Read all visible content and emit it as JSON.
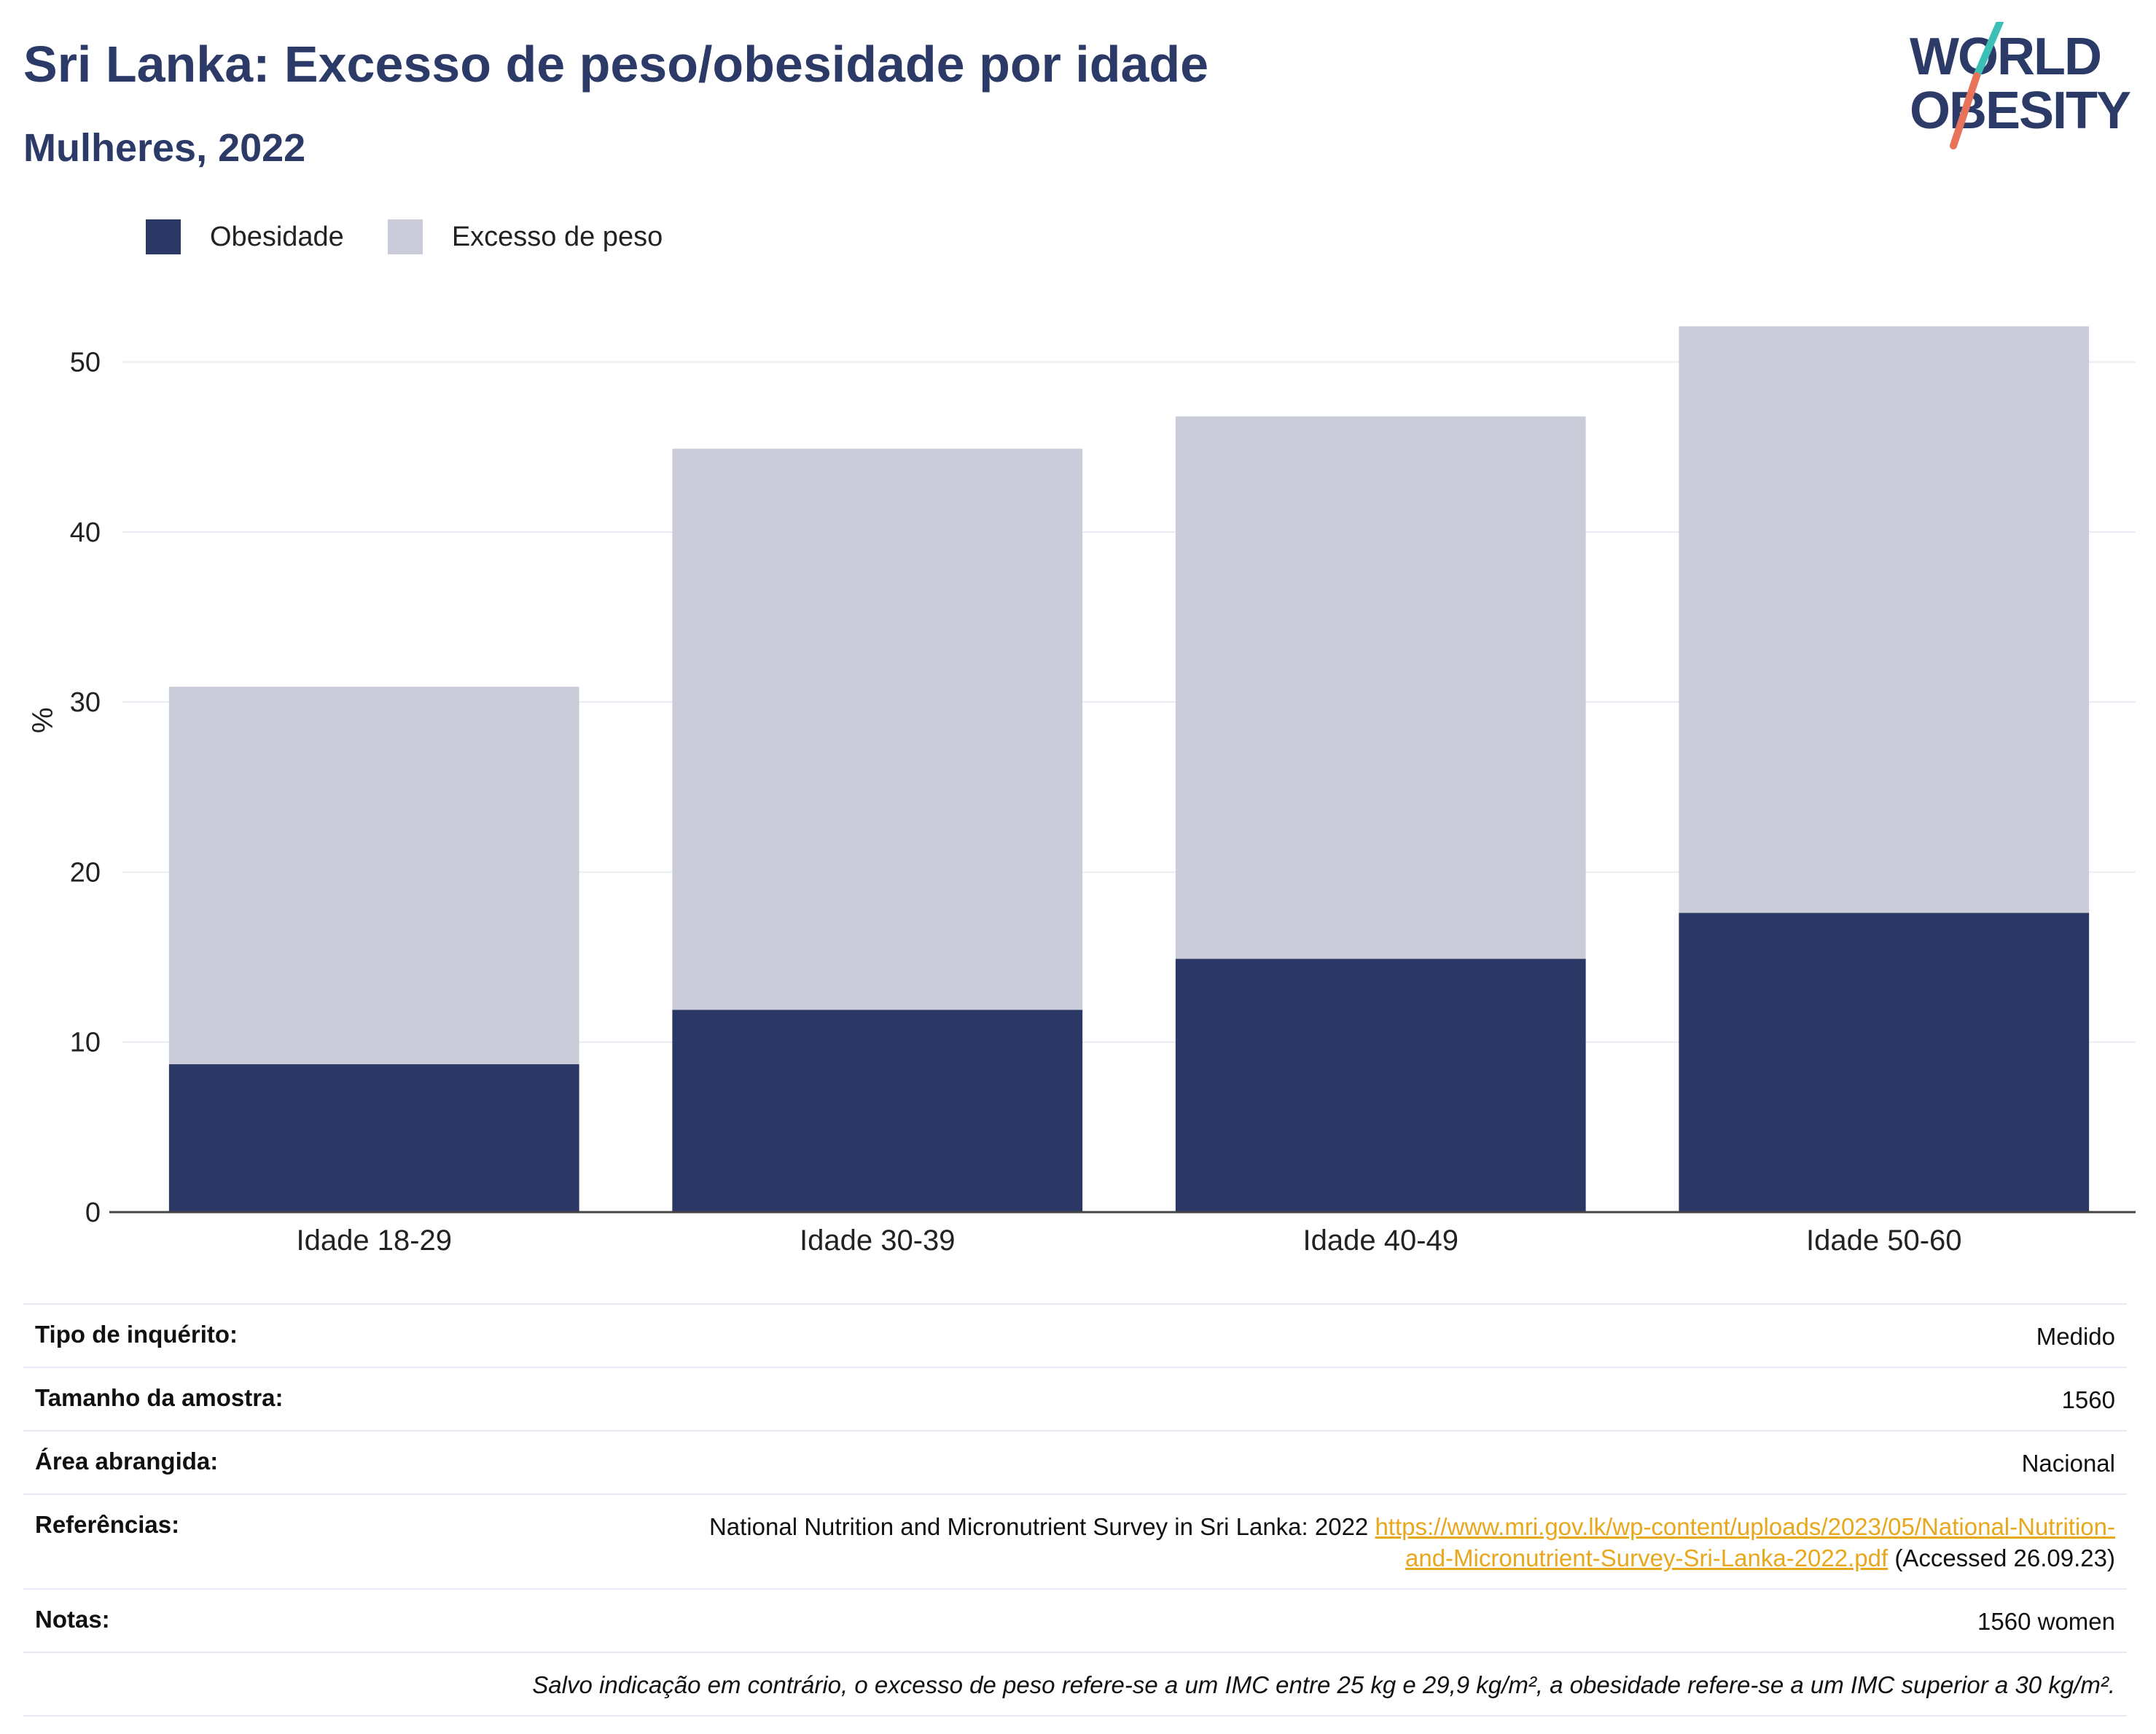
{
  "header": {
    "title": "Sri Lanka: Excesso de peso/obesidade por idade",
    "subtitle": "Mulheres, 2022"
  },
  "logo": {
    "line1": "WORLD",
    "line2": "OBESITY",
    "colors": {
      "text": "#2b3a67",
      "slash_top": "#3bbfb7",
      "slash_bottom": "#e8735a"
    }
  },
  "colors": {
    "obesity": "#2b3765",
    "overweight": "#cacdd9",
    "grid": "#e9ecf2",
    "axis": "#444444"
  },
  "chart_data": {
    "type": "bar",
    "stacked": true,
    "categories": [
      "Idade 18-29",
      "Idade 30-39",
      "Idade 40-49",
      "Idade 50-60"
    ],
    "series": [
      {
        "name": "Obesidade",
        "values": [
          8.7,
          11.9,
          14.9,
          17.6
        ]
      },
      {
        "name": "Excesso de peso",
        "values": [
          22.2,
          33.0,
          31.9,
          34.5
        ]
      }
    ],
    "ylabel": "%",
    "ylim": [
      0,
      55
    ],
    "yticks": [
      0,
      10,
      20,
      30,
      40,
      50
    ],
    "grid": true,
    "legend": "top-left"
  },
  "info": {
    "survey_type": {
      "label": "Tipo de inquérito:",
      "value": "Medido"
    },
    "sample_size": {
      "label": "Tamanho da amostra:",
      "value": "1560"
    },
    "area": {
      "label": "Área abrangida:",
      "value": "Nacional"
    },
    "references": {
      "label": "Referências:",
      "text": "National Nutrition and Micronutrient Survey in Sri Lanka: 2022",
      "url_part1": "https://www.mri.gov.lk/wp-content/uploads/2023/05/National-Nutrition-",
      "url_part2": "and-Micronutrient-Survey-Sri-Lanka-2022.pdf",
      "accessed": "(Accessed 26.09.23)"
    },
    "notes": {
      "label": "Notas:",
      "value": "1560 women"
    },
    "footnote": "Salvo indicação em contrário, o excesso de peso refere-se a um IMC entre 25 kg e 29,9 kg/m², a obesidade refere-se a um IMC superior a 30 kg/m²."
  }
}
